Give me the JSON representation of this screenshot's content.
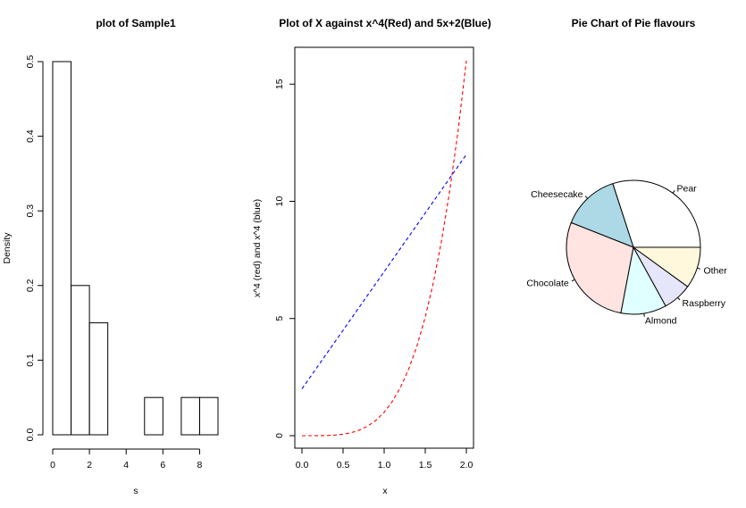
{
  "chart_data": [
    {
      "type": "histogram",
      "title": "plot of Sample1",
      "xlabel": "s",
      "ylabel": "Density",
      "bins": [
        {
          "x0": 0,
          "x1": 1,
          "density": 0.5
        },
        {
          "x0": 1,
          "x1": 2,
          "density": 0.2
        },
        {
          "x0": 2,
          "x1": 3,
          "density": 0.15
        },
        {
          "x0": 3,
          "x1": 4,
          "density": 0.0
        },
        {
          "x0": 4,
          "x1": 5,
          "density": 0.0
        },
        {
          "x0": 5,
          "x1": 6,
          "density": 0.05
        },
        {
          "x0": 6,
          "x1": 7,
          "density": 0.0
        },
        {
          "x0": 7,
          "x1": 8,
          "density": 0.05
        },
        {
          "x0": 8,
          "x1": 9,
          "density": 0.05
        }
      ],
      "xlim": [
        0,
        9
      ],
      "ylim": [
        0,
        0.5
      ],
      "xticks": [
        "0",
        "2",
        "4",
        "6",
        "8"
      ],
      "yticks": [
        "0.0",
        "0.1",
        "0.2",
        "0.3",
        "0.4",
        "0.5"
      ]
    },
    {
      "type": "line",
      "title": "Plot of X against x^4(Red) and 5x+2(Blue)",
      "xlabel": "x",
      "ylabel": "x^4 (red) and x^4 (blue)",
      "x": [
        0,
        0.1,
        0.2,
        0.3,
        0.4,
        0.5,
        0.6,
        0.7,
        0.8,
        0.9,
        1.0,
        1.1,
        1.2,
        1.3,
        1.4,
        1.5,
        1.6,
        1.7,
        1.8,
        1.9,
        2.0
      ],
      "series": [
        {
          "color": "#ff0000",
          "dash": true,
          "values": [
            0,
            0.0001,
            0.0016,
            0.0081,
            0.0256,
            0.0625,
            0.1296,
            0.2401,
            0.4096,
            0.6561,
            1.0,
            1.4641,
            2.0736,
            2.8561,
            3.8416,
            5.0625,
            6.5536,
            8.3521,
            10.4976,
            13.0321,
            16.0
          ]
        },
        {
          "color": "#0000ff",
          "dash": true,
          "values": [
            2.0,
            2.5,
            3.0,
            3.5,
            4.0,
            4.5,
            5.0,
            5.5,
            6.0,
            6.5,
            7.0,
            7.5,
            8.0,
            8.5,
            9.0,
            9.5,
            10.0,
            10.5,
            11.0,
            11.5,
            12.0
          ]
        }
      ],
      "xlim": [
        0,
        2
      ],
      "ylim": [
        0,
        16
      ],
      "xticks": [
        "0.0",
        "0.5",
        "1.0",
        "1.5",
        "2.0"
      ],
      "yticks": [
        "0",
        "5",
        "10",
        "15"
      ]
    },
    {
      "type": "pie",
      "title": "Pie Chart of Pie flavours",
      "slices": [
        {
          "label": "Pear",
          "value": 0.3,
          "color": "#ffffff"
        },
        {
          "label": "Cheesecake",
          "value": 0.14,
          "color": "#add8e6"
        },
        {
          "label": "Chocolate",
          "value": 0.28,
          "color": "#ffe4e1"
        },
        {
          "label": "Almond",
          "value": 0.11,
          "color": "#e0ffff"
        },
        {
          "label": "Raspberry",
          "value": 0.07,
          "color": "#e6e6fa"
        },
        {
          "label": "Other",
          "value": 0.1,
          "color": "#fff8dc"
        }
      ]
    }
  ]
}
